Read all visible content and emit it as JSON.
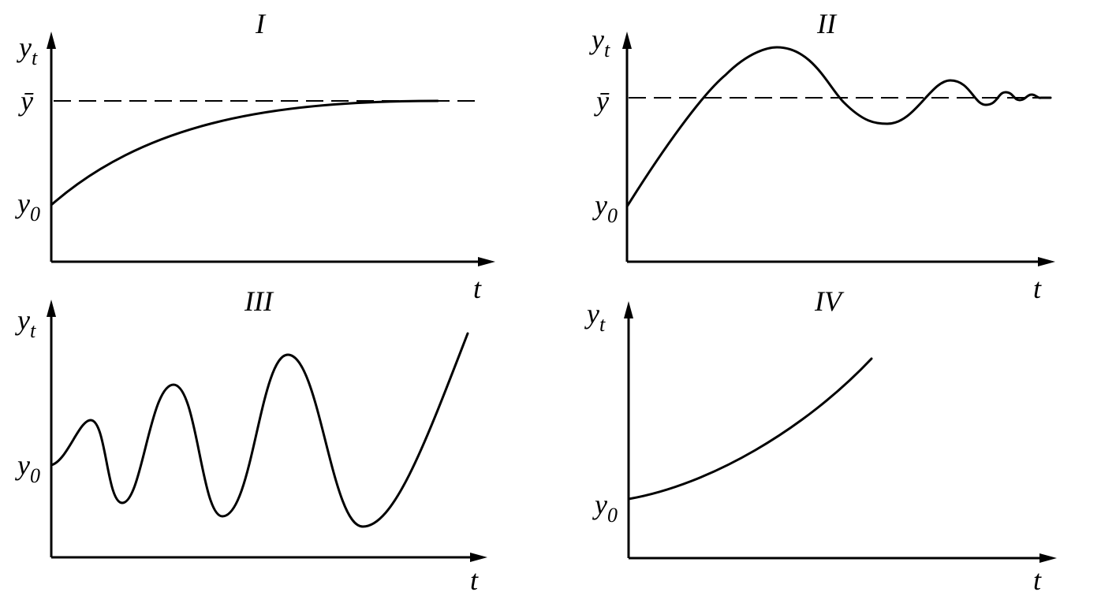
{
  "panels": [
    {
      "title": "I",
      "y_label": {
        "base": "y",
        "sub": "t"
      },
      "steady_label": "ȳ",
      "start_label": {
        "base": "y",
        "sub": "0"
      },
      "x_label": "t"
    },
    {
      "title": "II",
      "y_label": {
        "base": "y",
        "sub": "t"
      },
      "steady_label": "ȳ",
      "start_label": {
        "base": "y",
        "sub": "0"
      },
      "x_label": "t"
    },
    {
      "title": "III",
      "y_label": {
        "base": "y",
        "sub": "t"
      },
      "start_label": {
        "base": "y",
        "sub": "0"
      },
      "x_label": "t"
    },
    {
      "title": "IV",
      "y_label": {
        "base": "y",
        "sub": "t"
      },
      "start_label": {
        "base": "y",
        "sub": "0"
      },
      "x_label": "t"
    }
  ]
}
